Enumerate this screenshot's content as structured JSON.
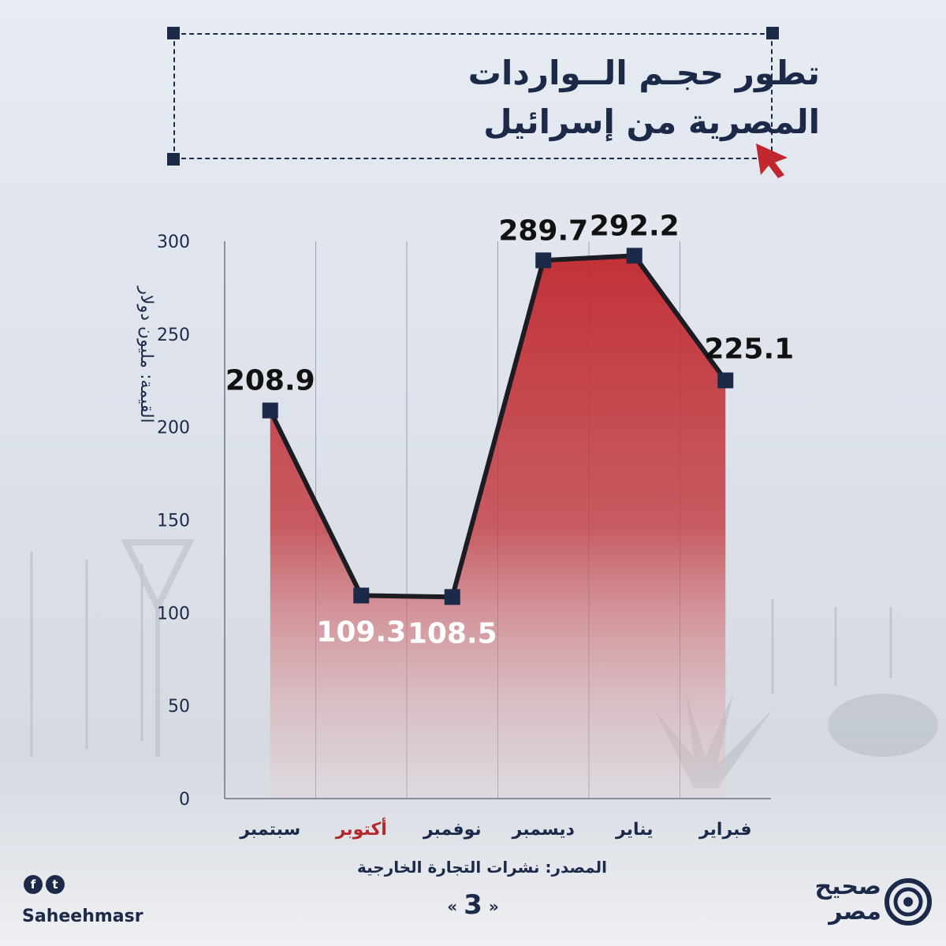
{
  "title": {
    "line1": "تطور حجـم الــواردات",
    "line2": "المصرية من إسرائيل"
  },
  "chart_data": {
    "type": "area",
    "categories": [
      "سبتمبر",
      "أكتوبر",
      "نوفمبر",
      "ديسمبر",
      "يناير",
      "فبراير"
    ],
    "highlight_category": "أكتوبر",
    "values": [
      208.9,
      109.3,
      108.5,
      289.7,
      292.2,
      225.1
    ],
    "value_labels": [
      "208.9",
      "109.3",
      "108.5",
      "289.7",
      "292.2",
      "225.1"
    ],
    "ylabel": "القيمة: مليون دولار",
    "yticks": [
      "0",
      "50",
      "100",
      "150",
      "200",
      "250",
      "300"
    ],
    "ylim": [
      0,
      300
    ],
    "grid": "vertical",
    "colors": {
      "fill": "#c0282e",
      "line": "#1c1c22",
      "marker": "#1c2a4a",
      "highlight": "#b3272d"
    }
  },
  "footer": {
    "source": "المصدر: نشرات التجارة الخارجية",
    "page_number": "3",
    "handle": "Saheehmasr",
    "social_icons": [
      "facebook-icon",
      "twitter-icon"
    ],
    "logo_line1": "صحيح",
    "logo_line2": "مصر"
  }
}
